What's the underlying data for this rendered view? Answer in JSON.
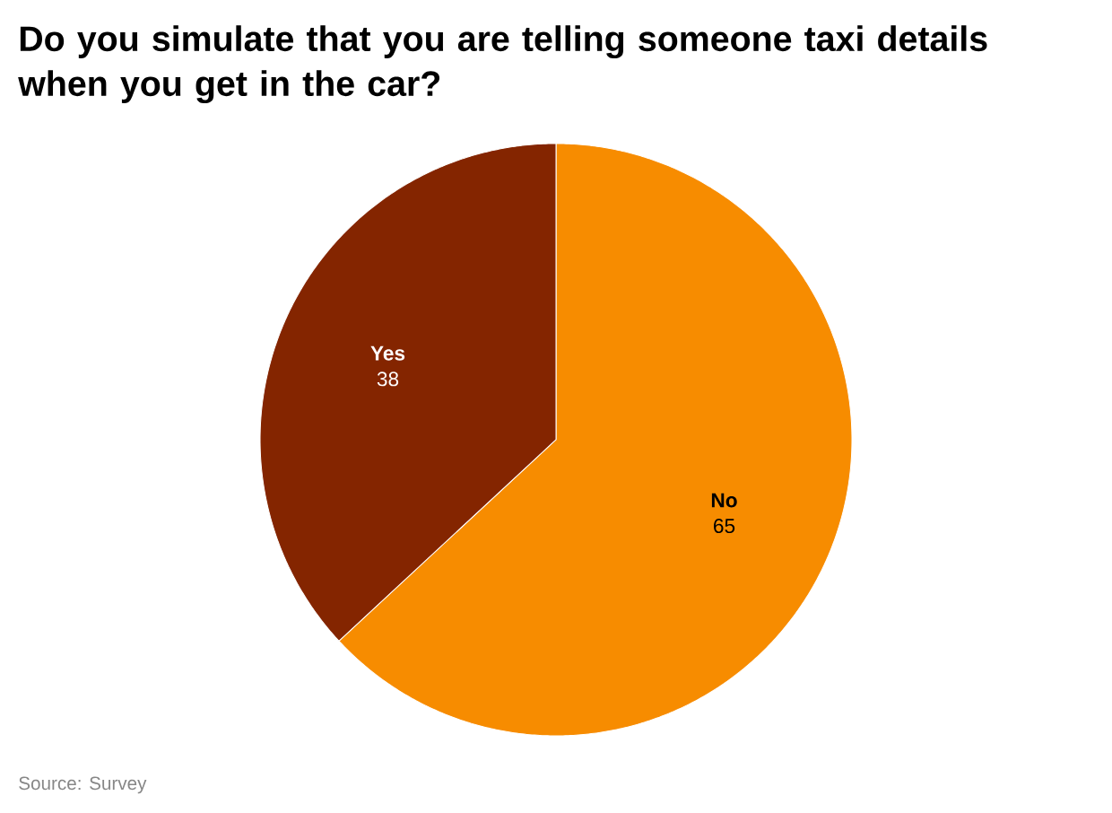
{
  "chart_data": {
    "type": "pie",
    "title": "Do you simulate that you are telling someone taxi details when you get in the car?",
    "categories": [
      "No",
      "Yes"
    ],
    "values": [
      65,
      38
    ],
    "colors": [
      "#f78c00",
      "#842500"
    ],
    "data_labels": true,
    "annotations": [
      "Source: Survey"
    ]
  }
}
